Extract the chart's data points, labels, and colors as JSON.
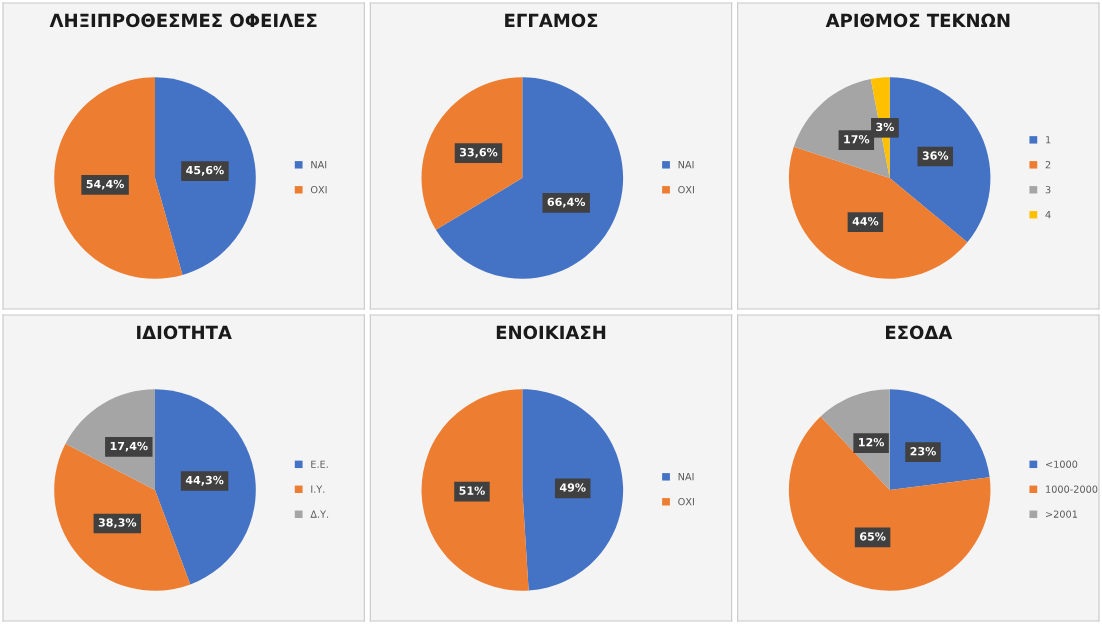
{
  "chart_data": [
    {
      "type": "pie",
      "title": "ΛΗΞΙΠΡΟΘΕΣΜΕΣ ΟΦΕΙΛΕΣ",
      "categories": [
        "ΝΑΙ",
        "ΟΧΙ"
      ],
      "values": [
        45.6,
        54.4
      ],
      "colors": [
        "#4472c4",
        "#ed7d31"
      ],
      "value_labels": [
        "45,6%",
        "54,4%"
      ],
      "legend": "right"
    },
    {
      "type": "pie",
      "title": "ΕΓΓΑΜΟΣ",
      "categories": [
        "ΝΑΙ",
        "ΟΧΙ"
      ],
      "values": [
        66.4,
        33.6
      ],
      "colors": [
        "#4472c4",
        "#ed7d31"
      ],
      "value_labels": [
        "66,4%",
        "33,6%"
      ],
      "legend": "right"
    },
    {
      "type": "pie",
      "title": "ΑΡΙΘΜΟΣ ΤΕΚΝΩΝ",
      "categories": [
        "1",
        "2",
        "3",
        "4"
      ],
      "values": [
        36,
        44,
        17,
        3
      ],
      "colors": [
        "#4472c4",
        "#ed7d31",
        "#a5a5a5",
        "#ffc000"
      ],
      "value_labels": [
        "36%",
        "44%",
        "17%",
        "3%"
      ],
      "legend": "right"
    },
    {
      "type": "pie",
      "title": "ΙΔΙΟΤΗΤΑ",
      "categories": [
        "Ε.Ε.",
        "Ι.Υ.",
        "Δ.Υ."
      ],
      "values": [
        44.3,
        38.3,
        17.4
      ],
      "colors": [
        "#4472c4",
        "#ed7d31",
        "#a5a5a5"
      ],
      "value_labels": [
        "44,3%",
        "38,3%",
        "17,4%"
      ],
      "legend": "right"
    },
    {
      "type": "pie",
      "title": "ΕΝΟΙΚΙΑΣΗ",
      "categories": [
        "ΝΑΙ",
        "ΟΧΙ"
      ],
      "values": [
        49,
        51
      ],
      "colors": [
        "#4472c4",
        "#ed7d31"
      ],
      "value_labels": [
        "49%",
        "51%"
      ],
      "legend": "right"
    },
    {
      "type": "pie",
      "title": "ΕΣΟΔΑ",
      "categories": [
        "<1000",
        "1000-2000",
        ">2001"
      ],
      "values": [
        23,
        65,
        12
      ],
      "colors": [
        "#4472c4",
        "#ed7d31",
        "#a5a5a5"
      ],
      "value_labels": [
        "23%",
        "65%",
        "12%"
      ],
      "legend": "right"
    }
  ]
}
